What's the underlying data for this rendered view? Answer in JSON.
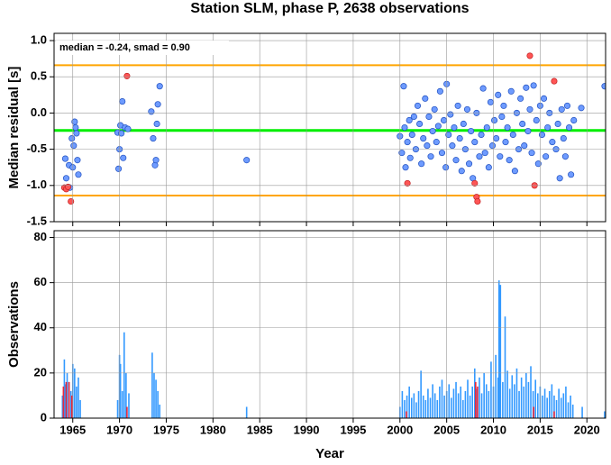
{
  "chart_data": [
    {
      "type": "scatter",
      "title": "Station SLM, phase P, 2638 observations",
      "ylabel": "Median residual [s]",
      "annotation": "median = -0.24, smad = 0.90",
      "xlim": [
        1963,
        2022
      ],
      "ylim": [
        -1.5,
        1.1
      ],
      "xticks": [
        1965,
        1970,
        1975,
        1980,
        1985,
        1990,
        1995,
        2000,
        2005,
        2010,
        2015,
        2020
      ],
      "xtick_labels": false,
      "yticks": [
        {
          "value": 1,
          "label": "1.0"
        },
        0.5,
        {
          "value": 0,
          "label": "0.0"
        },
        -0.5,
        {
          "value": -1,
          "label": "-1.0"
        },
        -1.5
      ],
      "grid": true,
      "reference_lines": [
        {
          "value": -0.24,
          "color": "#00ee00"
        },
        {
          "value": 0.66,
          "color": "#ffa500"
        },
        {
          "value": -1.14,
          "color": "#ffa500"
        }
      ],
      "series": [
        {
          "color": "#6e9bff",
          "edge": "#1f4fbf",
          "x": [
            1964.2,
            1964.3,
            1964.6,
            1964.9,
            1965.0,
            1965.1,
            1965.2,
            1965.3,
            1965.4,
            1965.5,
            1965.6,
            1964.7,
            1969.8,
            1969.9,
            1970.0,
            1970.1,
            1970.2,
            1970.3,
            1970.4,
            1970.6,
            1970.9,
            1973.4,
            1973.6,
            1973.8,
            1973.9,
            1974.0,
            1974.1,
            1974.3,
            1983.6,
            2000.0,
            2000.2,
            2000.4,
            2000.5,
            2000.6,
            2000.8,
            2001.0,
            2001.1,
            2001.3,
            2001.5,
            2001.7,
            2001.9,
            2002.1,
            2002.3,
            2002.5,
            2002.7,
            2002.9,
            2003.1,
            2003.3,
            2003.5,
            2003.7,
            2003.9,
            2004.1,
            2004.3,
            2004.5,
            2004.7,
            2004.9,
            2005.0,
            2005.2,
            2005.4,
            2005.6,
            2005.8,
            2006.0,
            2006.2,
            2006.4,
            2006.6,
            2006.8,
            2007.0,
            2007.2,
            2007.4,
            2007.6,
            2007.8,
            2008.0,
            2008.2,
            2008.5,
            2008.7,
            2008.9,
            2009.1,
            2009.3,
            2009.5,
            2009.7,
            2009.9,
            2010.1,
            2010.3,
            2010.5,
            2010.7,
            2010.9,
            2011.1,
            2011.3,
            2011.5,
            2011.7,
            2011.9,
            2012.1,
            2012.3,
            2012.5,
            2012.7,
            2012.9,
            2013.1,
            2013.3,
            2013.5,
            2013.7,
            2013.9,
            2014.1,
            2014.3,
            2014.6,
            2014.8,
            2015.0,
            2015.2,
            2015.4,
            2015.6,
            2015.8,
            2016.0,
            2016.3,
            2016.7,
            2016.9,
            2017.1,
            2017.3,
            2017.5,
            2017.7,
            2017.9,
            2018.1,
            2018.3,
            2018.6,
            2019.4,
            2021.9
          ],
          "values": [
            -0.63,
            -0.9,
            -0.72,
            -0.35,
            -0.75,
            -0.45,
            -0.12,
            -0.2,
            -0.28,
            -0.65,
            -0.85,
            -1.03,
            -0.27,
            -0.77,
            -0.5,
            -0.17,
            -0.28,
            0.16,
            -0.62,
            -0.2,
            -0.22,
            0.02,
            -0.35,
            -0.72,
            -0.65,
            -0.15,
            0.12,
            0.37,
            -0.65,
            -0.32,
            -0.55,
            0.37,
            -0.2,
            -0.75,
            -0.4,
            -0.1,
            -0.62,
            -0.3,
            -0.05,
            -0.5,
            0.1,
            -0.15,
            -0.7,
            -0.35,
            0.2,
            -0.45,
            -0.05,
            -0.6,
            -0.25,
            0.05,
            -0.4,
            -0.18,
            0.3,
            -0.55,
            -0.1,
            -0.75,
            0.4,
            -0.3,
            -0.02,
            -0.45,
            -0.2,
            -0.65,
            0.1,
            -0.35,
            -0.8,
            -0.15,
            -0.5,
            0.05,
            -0.7,
            -0.25,
            -0.9,
            -0.4,
            0.0,
            -0.6,
            -0.3,
            0.34,
            -0.55,
            -0.2,
            -0.75,
            0.15,
            -0.45,
            -0.1,
            -0.35,
            0.25,
            -0.6,
            -0.05,
            0.1,
            -0.4,
            -0.2,
            -0.65,
            0.3,
            -0.3,
            -0.8,
            0.0,
            -0.5,
            0.2,
            -0.15,
            -0.45,
            0.35,
            -0.25,
            0.05,
            -0.55,
            0.38,
            -0.1,
            -0.7,
            0.1,
            -0.3,
            0.2,
            -0.6,
            -0.2,
            0.0,
            -0.4,
            -0.5,
            -0.15,
            -0.9,
            0.05,
            -0.35,
            -0.6,
            0.1,
            -0.2,
            -0.85,
            -0.1,
            0.07,
            0.37
          ]
        },
        {
          "color": "#ff5555",
          "edge": "#c02020",
          "x": [
            1964.1,
            1964.3,
            1964.5,
            1964.8,
            1970.8,
            2000.8,
            2008.0,
            2008.2,
            2008.3,
            2013.9,
            2014.4,
            2016.5
          ],
          "values": [
            -1.03,
            -1.05,
            -1.02,
            -1.22,
            0.51,
            -0.97,
            -0.97,
            -1.16,
            -1.22,
            0.79,
            -1.0,
            0.44
          ]
        }
      ]
    },
    {
      "type": "bar",
      "ylabel": "Observations",
      "xlabel": "Year",
      "xlim": [
        1963,
        2022
      ],
      "ylim": [
        0,
        83
      ],
      "xticks": [
        1965,
        1970,
        1975,
        1980,
        1985,
        1990,
        1995,
        2000,
        2005,
        2010,
        2015,
        2020
      ],
      "xtick_labels": true,
      "yticks": [
        0,
        20,
        40,
        60,
        80
      ],
      "grid": true,
      "series": [
        {
          "color": "#3399ff",
          "x": [
            1963.9,
            1964.1,
            1964.2,
            1964.4,
            1964.6,
            1964.8,
            1965.0,
            1965.2,
            1965.4,
            1965.6,
            1965.8,
            1969.8,
            1970.0,
            1970.1,
            1970.3,
            1970.5,
            1970.7,
            1971.0,
            1973.5,
            1973.7,
            1973.9,
            1974.1,
            1974.3,
            1983.6,
            2000.0,
            2000.25,
            2000.5,
            2000.75,
            2001.0,
            2001.25,
            2001.5,
            2001.75,
            2002.0,
            2002.25,
            2002.5,
            2002.75,
            2003.0,
            2003.25,
            2003.5,
            2003.75,
            2004.0,
            2004.25,
            2004.5,
            2004.75,
            2005.0,
            2005.25,
            2005.5,
            2005.75,
            2006.0,
            2006.25,
            2006.5,
            2006.75,
            2007.0,
            2007.25,
            2007.5,
            2007.75,
            2008.0,
            2008.25,
            2008.5,
            2008.75,
            2009.0,
            2009.25,
            2009.5,
            2009.75,
            2010.0,
            2010.25,
            2010.5,
            2010.6,
            2010.75,
            2011.0,
            2011.25,
            2011.5,
            2011.75,
            2012.0,
            2012.25,
            2012.5,
            2012.75,
            2013.0,
            2013.25,
            2013.5,
            2013.75,
            2014.0,
            2014.25,
            2014.5,
            2014.75,
            2015.0,
            2015.25,
            2015.5,
            2015.75,
            2016.0,
            2016.25,
            2016.5,
            2016.75,
            2017.0,
            2017.25,
            2017.5,
            2017.75,
            2018.0,
            2018.25,
            2018.5,
            2019.5,
            2021.9
          ],
          "values": [
            10,
            26,
            15,
            20,
            16,
            12,
            24,
            22,
            14,
            18,
            8,
            8,
            28,
            24,
            12,
            38,
            20,
            11,
            29,
            20,
            17,
            12,
            6,
            5,
            5,
            12,
            8,
            10,
            14,
            9,
            11,
            7,
            12,
            21,
            10,
            8,
            13,
            9,
            15,
            11,
            8,
            14,
            17,
            10,
            12,
            15,
            9,
            13,
            16,
            11,
            14,
            8,
            12,
            17,
            10,
            14,
            22,
            13,
            18,
            11,
            20,
            15,
            12,
            25,
            14,
            28,
            18,
            61,
            59,
            16,
            45,
            21,
            13,
            19,
            15,
            22,
            12,
            18,
            14,
            20,
            16,
            23,
            12,
            17,
            11,
            14,
            10,
            13,
            9,
            12,
            15,
            10,
            8,
            13,
            9,
            11,
            14,
            7,
            10,
            6,
            5,
            3
          ]
        },
        {
          "color": "#e8283c",
          "x": [
            1964.0,
            1964.3,
            1964.6,
            1964.9,
            1970.8,
            2000.7,
            2008.1,
            2008.3,
            2014.3,
            2016.5
          ],
          "values": [
            14,
            16,
            16,
            10,
            5,
            3,
            16,
            14,
            5,
            3
          ]
        }
      ]
    }
  ]
}
